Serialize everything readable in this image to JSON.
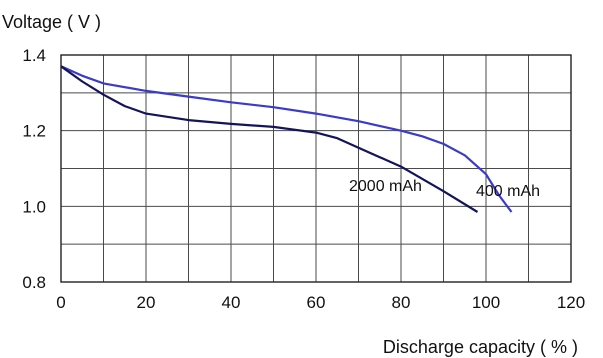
{
  "chart_data": {
    "type": "line",
    "ylabel": "Voltage ( V )",
    "xlabel": "Discharge  capacity ( % )",
    "xlim": [
      0,
      120
    ],
    "ylim": [
      0.8,
      1.4
    ],
    "x_ticks": [
      "0",
      "20",
      "40",
      "60",
      "80",
      "100",
      "120"
    ],
    "y_ticks": [
      "0.8",
      "1.0",
      "1.2",
      "1.4"
    ],
    "grid": true,
    "series": [
      {
        "name": "400 mAh",
        "color": "#3b3bc4",
        "points": [
          [
            0,
            1.37
          ],
          [
            5,
            1.345
          ],
          [
            10,
            1.325
          ],
          [
            20,
            1.305
          ],
          [
            30,
            1.29
          ],
          [
            40,
            1.275
          ],
          [
            50,
            1.262
          ],
          [
            60,
            1.245
          ],
          [
            70,
            1.225
          ],
          [
            80,
            1.2
          ],
          [
            85,
            1.185
          ],
          [
            90,
            1.165
          ],
          [
            95,
            1.135
          ],
          [
            100,
            1.085
          ],
          [
            103,
            1.03
          ],
          [
            106,
            0.985
          ]
        ]
      },
      {
        "name": "2000 mAh",
        "color": "#14145a",
        "points": [
          [
            0,
            1.37
          ],
          [
            5,
            1.33
          ],
          [
            10,
            1.295
          ],
          [
            15,
            1.265
          ],
          [
            20,
            1.245
          ],
          [
            30,
            1.228
          ],
          [
            40,
            1.218
          ],
          [
            50,
            1.21
          ],
          [
            60,
            1.195
          ],
          [
            65,
            1.18
          ],
          [
            70,
            1.155
          ],
          [
            75,
            1.13
          ],
          [
            80,
            1.105
          ],
          [
            90,
            1.04
          ],
          [
            98,
            0.985
          ]
        ]
      }
    ]
  }
}
